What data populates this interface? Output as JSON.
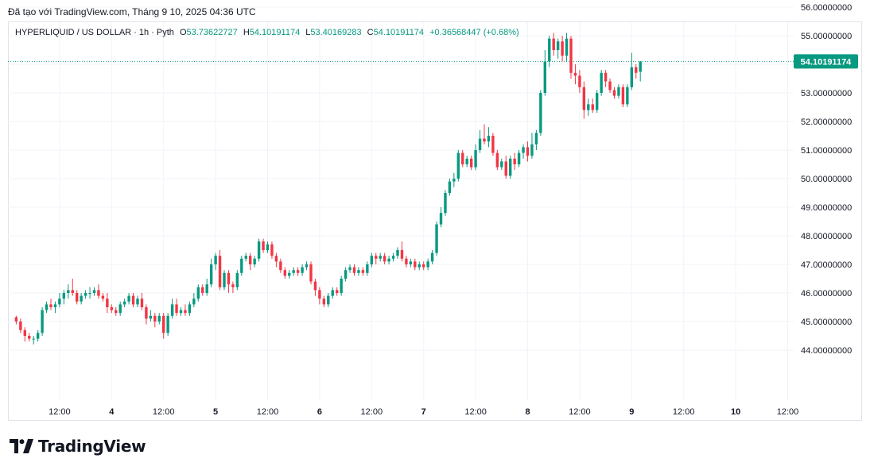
{
  "header": {
    "attribution": "Đã tạo với TradingView.com, Tháng 9 10, 2025 04:36 UTC"
  },
  "legend": {
    "symbol": "HYPERLIQUID / US DOLLAR · 1h · Pyth",
    "o_label": "O",
    "o_value": "53.73622727",
    "h_label": "H",
    "h_value": "54.10191174",
    "l_label": "L",
    "l_value": "53.40169283",
    "c_label": "C",
    "c_value": "54.10191174",
    "change": "+0.36568447 (+0.68%)"
  },
  "colors": {
    "up": "#089981",
    "down": "#f23645",
    "grid": "#f0f3fa",
    "text": "#131722"
  },
  "logo": {
    "text": "TradingView"
  },
  "chart_data": {
    "type": "candlestick",
    "title": "HYPERLIQUID / US DOLLAR · 1h · Pyth",
    "ylim": [
      43.0,
      56.6
    ],
    "y_ticks": [
      "56.00000000",
      "55.00000000",
      "54.00000000",
      "53.00000000",
      "52.00000000",
      "51.00000000",
      "50.00000000",
      "49.00000000",
      "48.00000000",
      "47.00000000",
      "46.00000000",
      "45.00000000",
      "44.00000000"
    ],
    "y_tick_values": [
      56,
      55,
      54,
      53,
      52,
      51,
      50,
      49,
      48,
      47,
      46,
      45,
      44
    ],
    "x_ticks": [
      "12:00",
      "4",
      "12:00",
      "5",
      "12:00",
      "6",
      "12:00",
      "7",
      "12:00",
      "8",
      "12:00",
      "9",
      "12:00",
      "10",
      "12:00"
    ],
    "x_tick_hours": [
      12,
      24,
      36,
      48,
      60,
      72,
      84,
      96,
      108,
      120,
      132,
      144,
      156,
      168,
      180
    ],
    "last_price": "54.10191174",
    "last_price_value": 54.10191174,
    "start_hour": 2,
    "candles": [
      [
        45.15,
        45.0,
        45.2,
        44.9
      ],
      [
        45.0,
        44.7,
        45.1,
        44.6
      ],
      [
        44.7,
        44.5,
        44.8,
        44.3
      ],
      [
        44.5,
        44.4,
        44.6,
        44.3
      ],
      [
        44.4,
        44.4,
        44.5,
        44.2
      ],
      [
        44.4,
        44.6,
        44.7,
        44.3
      ],
      [
        44.6,
        45.4,
        45.5,
        44.5
      ],
      [
        45.4,
        45.6,
        45.7,
        45.3
      ],
      [
        45.6,
        45.5,
        45.8,
        45.4
      ],
      [
        45.5,
        45.6,
        45.7,
        45.3
      ],
      [
        45.6,
        45.8,
        46.0,
        45.5
      ],
      [
        45.8,
        46.0,
        46.1,
        45.6
      ],
      [
        46.0,
        46.1,
        46.3,
        45.8
      ],
      [
        46.1,
        46.0,
        46.5,
        45.9
      ],
      [
        46.0,
        45.7,
        46.1,
        45.6
      ],
      [
        45.7,
        45.9,
        46.0,
        45.6
      ],
      [
        45.9,
        46.0,
        46.1,
        45.8
      ],
      [
        46.0,
        46.0,
        46.2,
        45.8
      ],
      [
        46.0,
        46.1,
        46.2,
        45.9
      ],
      [
        46.1,
        45.9,
        46.3,
        45.8
      ],
      [
        45.9,
        45.8,
        46.0,
        45.7
      ],
      [
        45.8,
        45.5,
        46.0,
        45.3
      ],
      [
        45.5,
        45.4,
        45.6,
        45.3
      ],
      [
        45.4,
        45.3,
        45.5,
        45.2
      ],
      [
        45.3,
        45.6,
        45.7,
        45.2
      ],
      [
        45.6,
        45.7,
        45.8,
        45.5
      ],
      [
        45.7,
        45.9,
        46.0,
        45.6
      ],
      [
        45.9,
        45.6,
        46.0,
        45.5
      ],
      [
        45.6,
        45.8,
        45.9,
        45.5
      ],
      [
        45.8,
        45.5,
        46.0,
        45.4
      ],
      [
        45.5,
        45.1,
        45.6,
        44.9
      ],
      [
        45.1,
        45.2,
        45.4,
        45.0
      ],
      [
        45.2,
        45.0,
        45.3,
        44.8
      ],
      [
        45.0,
        45.2,
        45.3,
        44.9
      ],
      [
        45.2,
        44.6,
        45.3,
        44.4
      ],
      [
        44.6,
        45.2,
        45.3,
        44.5
      ],
      [
        45.2,
        45.6,
        45.8,
        45.1
      ],
      [
        45.6,
        45.3,
        45.8,
        45.2
      ],
      [
        45.3,
        45.4,
        45.5,
        45.2
      ],
      [
        45.4,
        45.3,
        45.6,
        45.2
      ],
      [
        45.3,
        45.6,
        45.7,
        45.2
      ],
      [
        45.6,
        45.8,
        46.0,
        45.5
      ],
      [
        45.8,
        46.2,
        46.3,
        45.7
      ],
      [
        46.2,
        46.0,
        46.3,
        45.9
      ],
      [
        46.0,
        46.3,
        46.5,
        45.9
      ],
      [
        46.3,
        47.0,
        47.2,
        46.2
      ],
      [
        47.0,
        47.3,
        47.4,
        46.8
      ],
      [
        47.3,
        46.2,
        47.5,
        46.1
      ],
      [
        46.2,
        46.7,
        46.8,
        46.1
      ],
      [
        46.7,
        46.3,
        46.8,
        46.0
      ],
      [
        46.3,
        46.2,
        46.4,
        46.0
      ],
      [
        46.2,
        46.7,
        46.8,
        46.1
      ],
      [
        46.7,
        47.2,
        47.3,
        46.6
      ],
      [
        47.2,
        47.3,
        47.4,
        47.1
      ],
      [
        47.3,
        47.0,
        47.4,
        46.8
      ],
      [
        47.0,
        47.2,
        47.3,
        46.9
      ],
      [
        47.2,
        47.8,
        47.9,
        47.1
      ],
      [
        47.8,
        47.5,
        47.9,
        47.4
      ],
      [
        47.5,
        47.7,
        47.8,
        47.4
      ],
      [
        47.7,
        47.3,
        47.8,
        47.2
      ],
      [
        47.3,
        47.1,
        47.4,
        46.9
      ],
      [
        47.1,
        46.8,
        47.2,
        46.7
      ],
      [
        46.8,
        46.6,
        46.9,
        46.5
      ],
      [
        46.6,
        46.7,
        46.8,
        46.5
      ],
      [
        46.7,
        46.8,
        46.9,
        46.6
      ],
      [
        46.8,
        46.7,
        46.9,
        46.6
      ],
      [
        46.7,
        46.9,
        47.0,
        46.6
      ],
      [
        46.9,
        47.0,
        47.1,
        46.8
      ],
      [
        47.0,
        46.4,
        47.1,
        46.3
      ],
      [
        46.4,
        46.1,
        46.5,
        45.9
      ],
      [
        46.1,
        45.8,
        46.2,
        45.6
      ],
      [
        45.8,
        45.6,
        45.9,
        45.5
      ],
      [
        45.6,
        45.9,
        46.0,
        45.5
      ],
      [
        45.9,
        46.1,
        46.2,
        45.8
      ],
      [
        46.1,
        46.0,
        46.2,
        45.9
      ],
      [
        46.0,
        46.5,
        46.6,
        45.9
      ],
      [
        46.5,
        46.8,
        46.9,
        46.4
      ],
      [
        46.8,
        46.9,
        47.0,
        46.7
      ],
      [
        46.9,
        46.7,
        47.0,
        46.6
      ],
      [
        46.7,
        46.8,
        46.9,
        46.6
      ],
      [
        46.8,
        46.7,
        46.9,
        46.6
      ],
      [
        46.7,
        47.0,
        47.1,
        46.6
      ],
      [
        47.0,
        47.3,
        47.4,
        46.9
      ],
      [
        47.3,
        47.2,
        47.4,
        47.0
      ],
      [
        47.2,
        47.3,
        47.4,
        47.1
      ],
      [
        47.3,
        47.1,
        47.4,
        47.0
      ],
      [
        47.1,
        47.2,
        47.3,
        47.0
      ],
      [
        47.2,
        47.3,
        47.4,
        47.1
      ],
      [
        47.3,
        47.5,
        47.6,
        47.2
      ],
      [
        47.5,
        47.2,
        47.8,
        47.1
      ],
      [
        47.2,
        47.0,
        47.3,
        46.9
      ],
      [
        47.0,
        47.1,
        47.2,
        46.9
      ],
      [
        47.1,
        46.9,
        47.2,
        46.8
      ],
      [
        46.9,
        47.0,
        47.1,
        46.8
      ],
      [
        47.0,
        46.9,
        47.1,
        46.8
      ],
      [
        46.9,
        47.1,
        47.2,
        46.8
      ],
      [
        47.1,
        47.4,
        47.5,
        47.0
      ],
      [
        47.4,
        48.4,
        48.5,
        47.3
      ],
      [
        48.4,
        48.8,
        49.0,
        48.3
      ],
      [
        48.8,
        49.5,
        49.6,
        48.7
      ],
      [
        49.5,
        49.9,
        50.0,
        49.4
      ],
      [
        49.9,
        50.0,
        50.2,
        49.7
      ],
      [
        50.0,
        50.9,
        51.0,
        49.9
      ],
      [
        50.9,
        50.5,
        51.0,
        50.4
      ],
      [
        50.5,
        50.7,
        50.8,
        50.4
      ],
      [
        50.7,
        50.4,
        50.8,
        50.3
      ],
      [
        50.4,
        51.0,
        51.2,
        50.3
      ],
      [
        51.0,
        51.4,
        51.7,
        50.9
      ],
      [
        51.4,
        51.3,
        51.9,
        51.2
      ],
      [
        51.3,
        51.5,
        51.8,
        51.1
      ],
      [
        51.5,
        50.9,
        51.6,
        50.8
      ],
      [
        50.9,
        50.4,
        51.0,
        50.3
      ],
      [
        50.4,
        50.6,
        50.7,
        50.3
      ],
      [
        50.6,
        50.1,
        50.8,
        50.0
      ],
      [
        50.1,
        50.7,
        50.8,
        50.0
      ],
      [
        50.7,
        50.5,
        50.9,
        50.3
      ],
      [
        50.5,
        50.9,
        51.0,
        50.4
      ],
      [
        50.9,
        51.1,
        51.2,
        50.7
      ],
      [
        51.1,
        50.8,
        51.3,
        50.6
      ],
      [
        50.8,
        51.2,
        51.6,
        50.7
      ],
      [
        51.2,
        51.6,
        51.7,
        51.0
      ],
      [
        51.6,
        53.0,
        53.1,
        51.5
      ],
      [
        53.0,
        54.1,
        54.5,
        52.9
      ],
      [
        54.1,
        54.9,
        55.0,
        53.9
      ],
      [
        54.9,
        54.5,
        55.1,
        54.3
      ],
      [
        54.5,
        54.8,
        54.9,
        54.2
      ],
      [
        54.8,
        54.3,
        55.0,
        54.1
      ],
      [
        54.3,
        54.9,
        55.1,
        54.1
      ],
      [
        54.9,
        53.7,
        55.0,
        53.5
      ],
      [
        53.7,
        53.6,
        54.0,
        53.3
      ],
      [
        53.6,
        53.2,
        53.8,
        53.0
      ],
      [
        53.2,
        52.4,
        53.4,
        52.1
      ],
      [
        52.4,
        52.6,
        52.8,
        52.2
      ],
      [
        52.6,
        52.4,
        52.8,
        52.3
      ],
      [
        52.4,
        53.0,
        53.1,
        52.3
      ],
      [
        53.0,
        53.7,
        53.8,
        52.9
      ],
      [
        53.7,
        53.4,
        53.8,
        53.2
      ],
      [
        53.4,
        53.1,
        53.5,
        53.0
      ],
      [
        53.1,
        52.9,
        53.2,
        52.8
      ],
      [
        52.9,
        53.2,
        53.3,
        52.8
      ],
      [
        53.2,
        52.6,
        53.3,
        52.5
      ],
      [
        52.6,
        53.2,
        53.3,
        52.5
      ],
      [
        53.2,
        53.9,
        54.4,
        53.1
      ],
      [
        53.9,
        53.7,
        54.0,
        53.5
      ],
      [
        53.74,
        54.1,
        54.1,
        53.4
      ]
    ]
  }
}
